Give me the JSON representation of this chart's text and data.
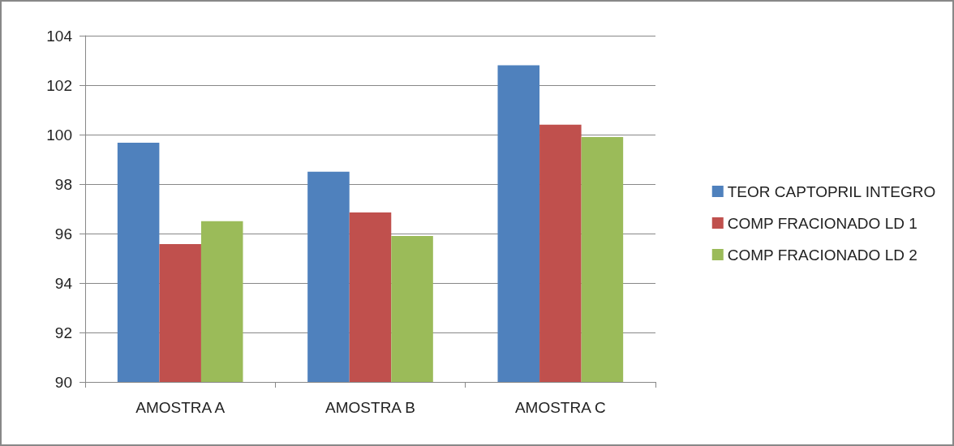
{
  "chart_data": {
    "type": "bar",
    "categories": [
      "AMOSTRA A",
      "AMOSTRA B",
      "AMOSTRA C"
    ],
    "series": [
      {
        "name": "TEOR CAPTOPRIL INTEGRO",
        "color": "#4f81bd",
        "values": [
          99.67,
          98.5,
          102.8
        ]
      },
      {
        "name": "COMP FRACIONADO LD 1",
        "color": "#c0504d",
        "values": [
          95.57,
          96.85,
          100.4
        ]
      },
      {
        "name": "COMP FRACIONADO LD 2",
        "color": "#9bbb59",
        "values": [
          96.5,
          95.9,
          99.9
        ]
      }
    ],
    "ylim": [
      90,
      104
    ],
    "yticks": [
      90,
      92,
      94,
      96,
      98,
      100,
      102,
      104
    ],
    "grid": "y",
    "legend": "right"
  }
}
